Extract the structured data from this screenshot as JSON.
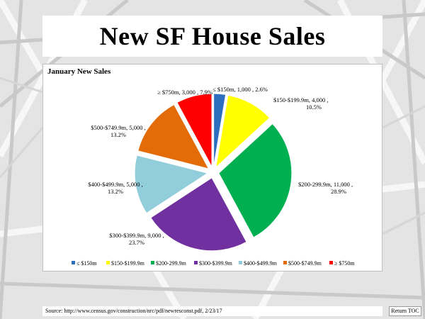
{
  "slide": {
    "title": "New SF House Sales",
    "source": "Source: http://www.census.gov/construction/nrc/pdf/newresconst.pdf, 2/23/17",
    "return_label": "Return TOC"
  },
  "chart_data": {
    "type": "pie",
    "title": "January New Sales",
    "legend_position": "bottom",
    "slices": [
      {
        "name": "≤ $150m",
        "value": 1000,
        "percent": "2.6%",
        "color": "#2e6ebf",
        "label": [
          "≤ $150m, 1,000 , 2.6%"
        ]
      },
      {
        "name": "$150-$199.9m",
        "value": 4000,
        "percent": "10.5%",
        "color": "#ffff00",
        "label": [
          "$150-$199.9m, 4,000 ,",
          "10.5%"
        ]
      },
      {
        "name": "$200-299.9m",
        "value": 11000,
        "percent": "28.9%",
        "color": "#00b050",
        "label": [
          "$200-299.9m, 11,000 ,",
          "28.9%"
        ]
      },
      {
        "name": "$300-$399.9m",
        "value": 9000,
        "percent": "23.7%",
        "color": "#7030a0",
        "label": [
          "$300-$399.9m, 9,000 ,",
          "23.7%"
        ]
      },
      {
        "name": "$400-$499.9m",
        "value": 5000,
        "percent": "13.2%",
        "color": "#92cddc",
        "label": [
          "$400-$499.9m, 5,000 ,",
          "13.2%"
        ]
      },
      {
        "name": "$500-$749.9m",
        "value": 5000,
        "percent": "13.2%",
        "color": "#e36c09",
        "label": [
          "$500-$749.9m, 5,000 ,",
          "13.2%"
        ]
      },
      {
        "name": "≥ $750m",
        "value": 3000,
        "percent": "7.9%",
        "color": "#ff0000",
        "label": [
          "≥ $750m, 3,000 , 7.9%"
        ]
      }
    ]
  }
}
